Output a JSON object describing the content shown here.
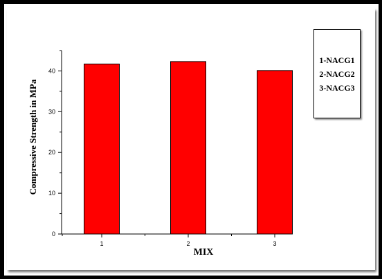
{
  "colors": {
    "bar": "#ff0000",
    "bar_edge": "#000000",
    "axis": "#000000",
    "background": "#ffffff"
  },
  "legend": {
    "items": [
      "1-NACG1",
      "2-NACG2",
      "3-NACG3"
    ]
  },
  "chart_data": {
    "type": "bar",
    "categories": [
      "1",
      "2",
      "3"
    ],
    "values": [
      41.7,
      42.3,
      40.1
    ],
    "title": "",
    "xlabel": "MIX",
    "ylabel": "Compressive Strength in MPa",
    "ylim": [
      0,
      45
    ],
    "yticks": [
      0,
      10,
      20,
      30,
      40
    ],
    "grid": false
  }
}
